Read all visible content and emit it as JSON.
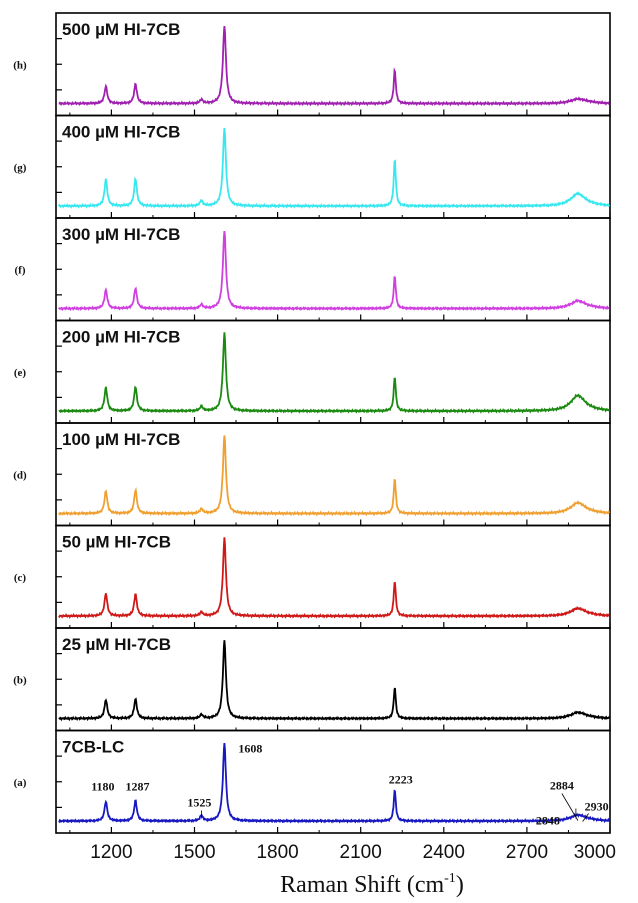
{
  "chart_data": {
    "type": "line",
    "xlabel_base": "Raman Shift (cm",
    "xlabel_sup": "-1",
    "xlabel_end": ")",
    "xlim": [
      1000,
      3000
    ],
    "xticks": [
      1200,
      1500,
      1800,
      2100,
      2400,
      2700,
      3000
    ],
    "grid": false,
    "panels": [
      {
        "letter": "(h)",
        "title": "500 µM HI-7CB",
        "color": "#a020b0",
        "heights": {
          "1180": 0.22,
          "1287": 0.25,
          "1525": 0.05,
          "1608": 1.0,
          "2223": 0.43,
          "2884": 0.04
        }
      },
      {
        "letter": "(g)",
        "title": "400 µM HI-7CB",
        "color": "#38e8ee",
        "heights": {
          "1180": 0.34,
          "1287": 0.35,
          "1525": 0.07,
          "1608": 1.0,
          "2223": 0.6,
          "2884": 0.14
        }
      },
      {
        "letter": "(f)",
        "title": "300 µM HI-7CB",
        "color": "#d040e0",
        "heights": {
          "1180": 0.24,
          "1287": 0.26,
          "1525": 0.05,
          "1608": 1.0,
          "2223": 0.42,
          "2884": 0.08
        }
      },
      {
        "letter": "(e)",
        "title": "200 µM HI-7CB",
        "color": "#1a8a10",
        "heights": {
          "1180": 0.3,
          "1287": 0.31,
          "1525": 0.06,
          "1608": 1.0,
          "2223": 0.44,
          "2884": 0.18
        }
      },
      {
        "letter": "(d)",
        "title": "100 µM HI-7CB",
        "color": "#f0a030",
        "heights": {
          "1180": 0.29,
          "1287": 0.3,
          "1525": 0.06,
          "1608": 1.0,
          "2223": 0.45,
          "2884": 0.12
        }
      },
      {
        "letter": "(c)",
        "title": "50 µM HI-7CB",
        "color": "#d01818",
        "heights": {
          "1180": 0.29,
          "1287": 0.28,
          "1525": 0.05,
          "1608": 1.0,
          "2223": 0.45,
          "2884": 0.08
        }
      },
      {
        "letter": "(b)",
        "title": "25 µM HI-7CB",
        "color": "#000000",
        "heights": {
          "1180": 0.24,
          "1287": 0.25,
          "1525": 0.05,
          "1608": 1.0,
          "2223": 0.4,
          "2884": 0.06
        }
      },
      {
        "letter": "(a)",
        "title": "7CB-LC",
        "color": "#1818c0",
        "heights": {
          "1180": 0.25,
          "1287": 0.26,
          "1525": 0.07,
          "1608": 1.0,
          "2223": 0.4,
          "2884": 0.06
        }
      }
    ],
    "peak_labels": [
      "1180",
      "1287",
      "1525",
      "1608",
      "2223",
      "2848",
      "2884",
      "2930"
    ]
  }
}
